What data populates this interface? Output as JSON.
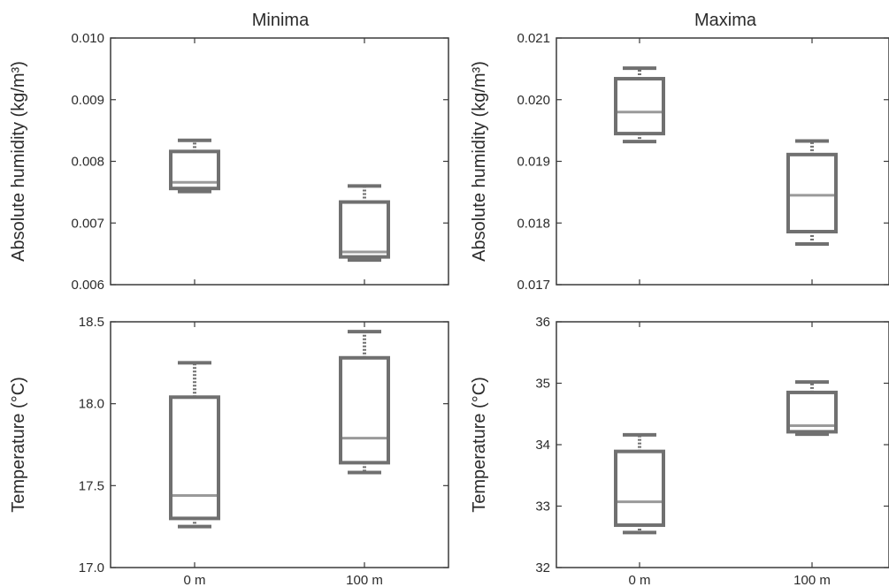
{
  "titles": {
    "minima": "Minima",
    "maxima": "Maxima"
  },
  "chart_data": [
    {
      "type": "box",
      "column": "Minima",
      "ylabel": "Absolute humidity (kg/m³)",
      "ylim": [
        0.006,
        0.01
      ],
      "yticks": [
        "0.006",
        "0.007",
        "0.008",
        "0.009",
        "0.010"
      ],
      "categories": [
        "0 m",
        "100 m"
      ],
      "boxes": [
        {
          "category": "0 m",
          "min": 0.00751,
          "q1": 0.00756,
          "median": 0.00766,
          "q3": 0.00816,
          "max": 0.00834
        },
        {
          "category": "100 m",
          "min": 0.0064,
          "q1": 0.00645,
          "median": 0.00653,
          "q3": 0.00734,
          "max": 0.0076
        }
      ]
    },
    {
      "type": "box",
      "column": "Maxima",
      "ylabel": "Absolute humidity (kg/m³)",
      "ylim": [
        0.017,
        0.021
      ],
      "yticks": [
        "0.017",
        "0.018",
        "0.019",
        "0.020",
        "0.021"
      ],
      "categories": [
        "0 m",
        "100 m"
      ],
      "boxes": [
        {
          "category": "0 m",
          "min": 0.01932,
          "q1": 0.01945,
          "median": 0.0198,
          "q3": 0.02034,
          "max": 0.02051
        },
        {
          "category": "100 m",
          "min": 0.01766,
          "q1": 0.01786,
          "median": 0.01845,
          "q3": 0.01911,
          "max": 0.01933
        }
      ]
    },
    {
      "type": "box",
      "column": "Minima",
      "ylabel": "Temperature (°C)",
      "ylim": [
        17.0,
        18.5
      ],
      "yticks": [
        "17.0",
        "17.5",
        "18.0",
        "18.5"
      ],
      "categories": [
        "0 m",
        "100 m"
      ],
      "boxes": [
        {
          "category": "0 m",
          "min": 17.25,
          "q1": 17.3,
          "median": 17.44,
          "q3": 18.04,
          "max": 18.25
        },
        {
          "category": "100 m",
          "min": 17.58,
          "q1": 17.64,
          "median": 17.79,
          "q3": 18.28,
          "max": 18.44
        }
      ]
    },
    {
      "type": "box",
      "column": "Maxima",
      "ylabel": "Temperature (°C)",
      "ylim": [
        32,
        36
      ],
      "yticks": [
        "32",
        "33",
        "34",
        "35",
        "36"
      ],
      "categories": [
        "0 m",
        "100 m"
      ],
      "boxes": [
        {
          "category": "0 m",
          "min": 32.57,
          "q1": 32.69,
          "median": 33.07,
          "q3": 33.89,
          "max": 34.16
        },
        {
          "category": "100 m",
          "min": 34.17,
          "q1": 34.21,
          "median": 34.31,
          "q3": 34.85,
          "max": 35.02
        }
      ]
    }
  ]
}
